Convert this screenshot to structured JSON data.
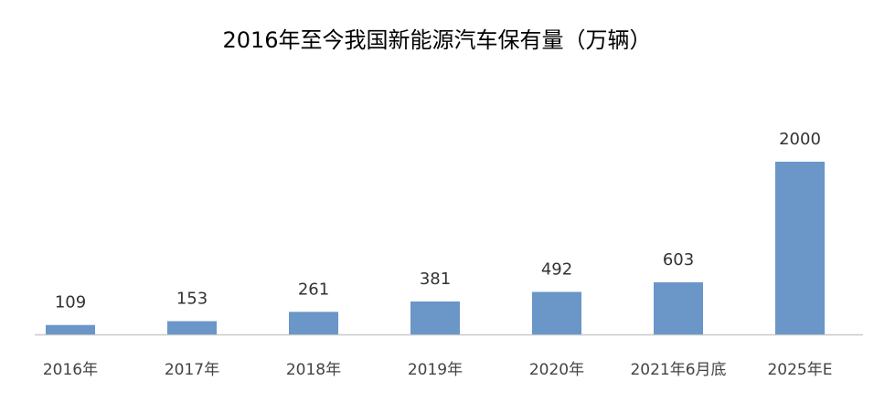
{
  "chart_data": {
    "type": "bar",
    "title": "2016年至今我国新能源汽车保有量（万辆）",
    "categories": [
      "2016年",
      "2017年",
      "2018年",
      "2019年",
      "2020年",
      "2021年6月底",
      "2025年E"
    ],
    "values": [
      109,
      153,
      261,
      381,
      492,
      603,
      2000
    ],
    "color": "#6a96c8"
  }
}
